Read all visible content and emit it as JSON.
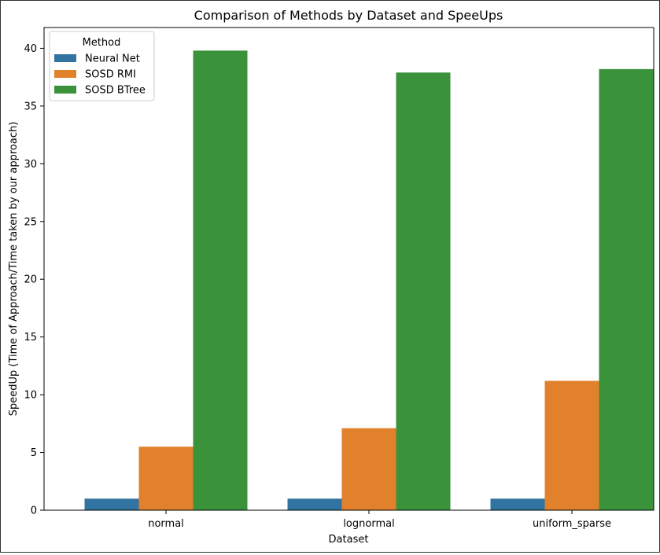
{
  "chart_data": {
    "type": "bar",
    "title": "Comparison of Methods by Dataset and SpeeUps",
    "xlabel": "Dataset",
    "ylabel": "SpeedUp (Time of Approach/Time taken by our approach)",
    "categories": [
      "normal",
      "lognormal",
      "uniform_sparse"
    ],
    "series": [
      {
        "name": "Neural Net",
        "values": [
          1.0,
          1.0,
          1.0
        ]
      },
      {
        "name": "SOSD RMI",
        "values": [
          5.5,
          7.1,
          11.2
        ]
      },
      {
        "name": "SOSD BTree",
        "values": [
          39.8,
          37.9,
          38.2
        ]
      }
    ],
    "ylim": [
      0,
      41.8
    ],
    "yticks": [
      0,
      5,
      10,
      15,
      20,
      25,
      30,
      35,
      40
    ],
    "grid": false,
    "legend": {
      "title": "Method",
      "placement": "top-left"
    },
    "colors": {
      "Neural Net": "#3274a1",
      "SOSD RMI": "#e1812c",
      "SOSD BTree": "#3a923a"
    }
  }
}
